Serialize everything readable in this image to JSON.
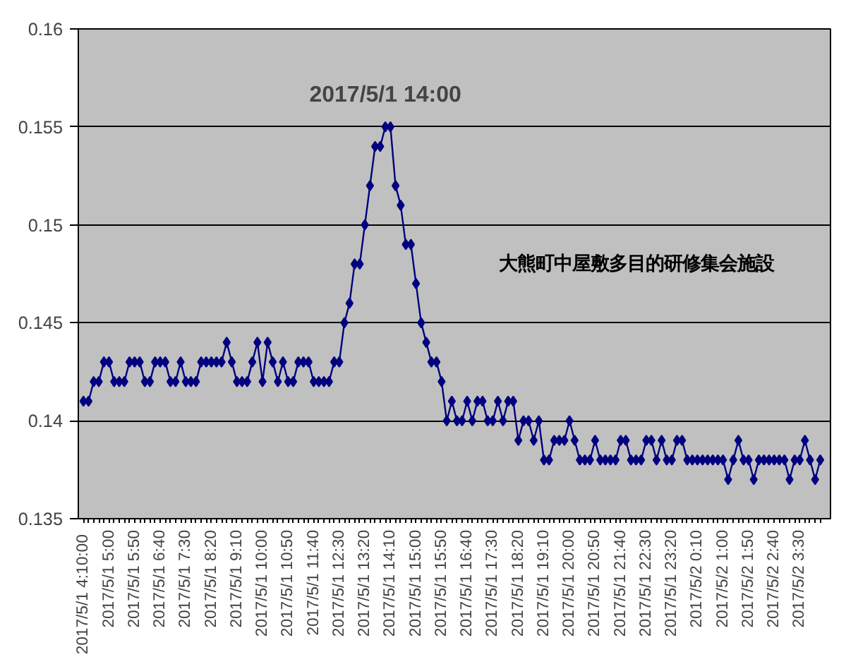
{
  "chart_data": {
    "type": "line",
    "categories": [
      "2017/5/1  4:10:00",
      null,
      null,
      null,
      null,
      "2017/5/1 5:00",
      null,
      null,
      null,
      null,
      "2017/5/1 5:50",
      null,
      null,
      null,
      null,
      "2017/5/1 6:40",
      null,
      null,
      null,
      null,
      "2017/5/1 7:30",
      null,
      null,
      null,
      null,
      "2017/5/1 8:20",
      null,
      null,
      null,
      null,
      "2017/5/1 9:10",
      null,
      null,
      null,
      null,
      "2017/5/1 10:00",
      null,
      null,
      null,
      null,
      "2017/5/1 10:50",
      null,
      null,
      null,
      null,
      "2017/5/1 11:40",
      null,
      null,
      null,
      null,
      "2017/5/1 12:30",
      null,
      null,
      null,
      null,
      "2017/5/1 13:20",
      null,
      null,
      null,
      null,
      "2017/5/1 14:10",
      null,
      null,
      null,
      null,
      "2017/5/1 15:00",
      null,
      null,
      null,
      null,
      "2017/5/1 15:50",
      null,
      null,
      null,
      null,
      "2017/5/1 16:40",
      null,
      null,
      null,
      null,
      "2017/5/1 17:30",
      null,
      null,
      null,
      null,
      "2017/5/1 18:20",
      null,
      null,
      null,
      null,
      "2017/5/1 19:10",
      null,
      null,
      null,
      null,
      "2017/5/1 20:00",
      null,
      null,
      null,
      null,
      "2017/5/1 20:50",
      null,
      null,
      null,
      null,
      "2017/5/1 21:40",
      null,
      null,
      null,
      null,
      "2017/5/1 22:30",
      null,
      null,
      null,
      null,
      "2017/5/1 23:20",
      null,
      null,
      null,
      null,
      "2017/5/2 0:10",
      null,
      null,
      null,
      null,
      "2017/5/2 1:00",
      null,
      null,
      null,
      null,
      "2017/5/2 1:50",
      null,
      null,
      null,
      null,
      "2017/5/2 2:40",
      null,
      null,
      null,
      null,
      "2017/5/2 3:30",
      null,
      null,
      null,
      null
    ],
    "series": [
      {
        "name": "大熊町中屋敷多目的研修集会施設",
        "color": "#000080",
        "values": [
          0.141,
          0.141,
          0.142,
          0.142,
          0.143,
          0.143,
          0.142,
          0.142,
          0.142,
          0.143,
          0.143,
          0.143,
          0.142,
          0.142,
          0.143,
          0.143,
          0.143,
          0.142,
          0.142,
          0.143,
          0.142,
          0.142,
          0.142,
          0.143,
          0.143,
          0.143,
          0.143,
          0.143,
          0.144,
          0.143,
          0.142,
          0.142,
          0.142,
          0.143,
          0.144,
          0.142,
          0.144,
          0.143,
          0.142,
          0.143,
          0.142,
          0.142,
          0.143,
          0.143,
          0.143,
          0.142,
          0.142,
          0.142,
          0.142,
          0.143,
          0.143,
          0.145,
          0.146,
          0.148,
          0.148,
          0.15,
          0.152,
          0.154,
          0.154,
          0.155,
          0.155,
          0.152,
          0.151,
          0.149,
          0.149,
          0.147,
          0.145,
          0.144,
          0.143,
          0.143,
          0.142,
          0.14,
          0.141,
          0.14,
          0.14,
          0.141,
          0.14,
          0.141,
          0.141,
          0.14,
          0.14,
          0.141,
          0.14,
          0.141,
          0.141,
          0.139,
          0.14,
          0.14,
          0.139,
          0.14,
          0.138,
          0.138,
          0.139,
          0.139,
          0.139,
          0.14,
          0.139,
          0.138,
          0.138,
          0.138,
          0.139,
          0.138,
          0.138,
          0.138,
          0.138,
          0.139,
          0.139,
          0.138,
          0.138,
          0.138,
          0.139,
          0.139,
          0.138,
          0.139,
          0.138,
          0.138,
          0.139,
          0.139,
          0.138,
          0.138,
          0.138,
          0.138,
          0.138,
          0.138,
          0.138,
          0.138,
          0.137,
          0.138,
          0.139,
          0.138,
          0.138,
          0.137,
          0.138,
          0.138,
          0.138,
          0.138,
          0.138,
          0.138,
          0.137,
          0.138,
          0.138,
          0.139,
          0.138,
          0.137,
          0.138
        ]
      }
    ],
    "ylim": [
      0.135,
      0.16
    ],
    "yticks": [
      0.135,
      0.14,
      0.145,
      0.15,
      0.155,
      0.16
    ],
    "grid": "y",
    "marker": "diamond",
    "line_style": "solid",
    "annotations": [
      "2017/5/1 14:00"
    ]
  }
}
